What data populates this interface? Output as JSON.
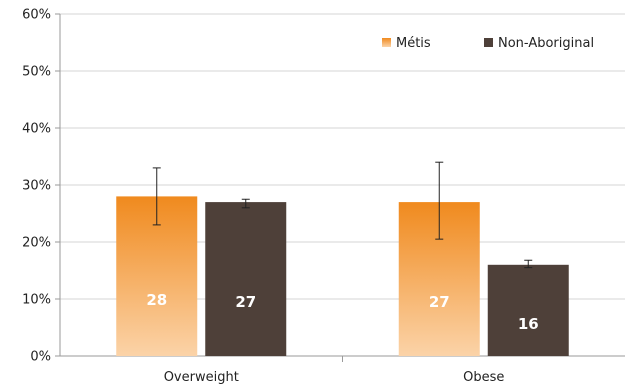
{
  "chart_data": {
    "type": "bar",
    "categories": [
      "Overweight",
      "Obese"
    ],
    "ylim": [
      0,
      60
    ],
    "yticks": [
      0,
      10,
      20,
      30,
      40,
      50,
      60
    ],
    "ytick_labels": [
      "0%",
      "10%",
      "20%",
      "30%",
      "40%",
      "50%",
      "60%"
    ],
    "grid": true,
    "legend_position": "top-right",
    "series": [
      {
        "name": "Métis",
        "values": [
          28,
          27
        ],
        "data_labels": [
          "28",
          "27"
        ],
        "error_low": [
          23,
          20.5
        ],
        "error_high": [
          33,
          34
        ],
        "color_top": "#f08a1e",
        "color_bottom": "#fbd3a8",
        "label_color": "#ffffff"
      },
      {
        "name": "Non-Aboriginal",
        "values": [
          27,
          16
        ],
        "data_labels": [
          "27",
          "16"
        ],
        "error_low": [
          26,
          15.5
        ],
        "error_high": [
          27.5,
          16.8
        ],
        "color": "#4e4039",
        "label_color": "#ffffff"
      }
    ]
  }
}
